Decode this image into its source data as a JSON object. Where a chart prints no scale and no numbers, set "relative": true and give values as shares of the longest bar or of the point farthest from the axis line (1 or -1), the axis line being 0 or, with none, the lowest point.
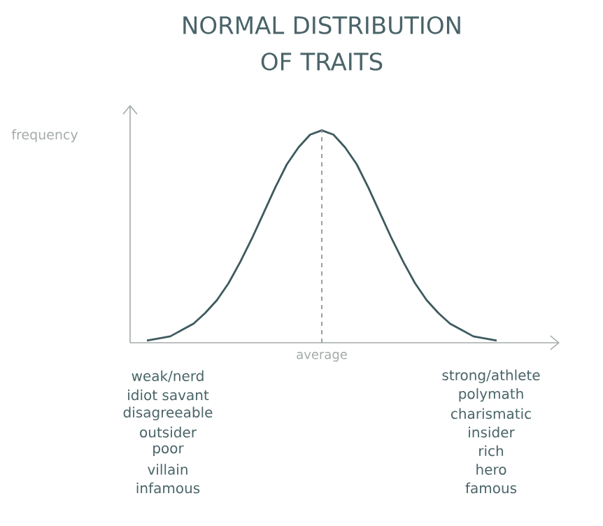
{
  "chart_data": {
    "type": "line",
    "title": "NORMAL DISTRIBUTION\nOF TRAITS",
    "ylabel": "frequency",
    "relative": true,
    "categories": [
      null,
      null,
      null,
      null,
      null,
      null,
      null,
      null,
      null,
      null,
      null,
      null,
      null,
      null,
      null,
      null,
      null,
      null,
      null,
      null,
      null,
      null,
      null,
      null,
      null,
      null,
      null,
      null,
      null,
      null,
      null
    ],
    "series": [
      {
        "color": "#3d5a5e",
        "values": [
          0.01,
          0.02,
          0.03,
          0.06,
          0.09,
          0.14,
          0.2,
          0.28,
          0.38,
          0.49,
          0.61,
          0.73,
          0.84,
          0.92,
          0.98,
          1,
          0.98,
          0.92,
          0.84,
          0.73,
          0.61,
          0.49,
          0.38,
          0.28,
          0.2,
          0.14,
          0.09,
          0.06,
          0.03,
          0.02,
          0.01
        ]
      }
    ],
    "ref_lines": [
      {
        "axis": "x",
        "label": "average",
        "color": "#9aa0a0",
        "line_style": "dashed"
      }
    ],
    "annotations": [
      "weak/nerd",
      "idiot savant",
      "disagreeable",
      "outsider",
      "poor",
      "villain",
      "infamous",
      "strong/athlete",
      "polymath",
      "charismatic",
      "insider",
      "rich",
      "hero",
      "famous"
    ]
  }
}
